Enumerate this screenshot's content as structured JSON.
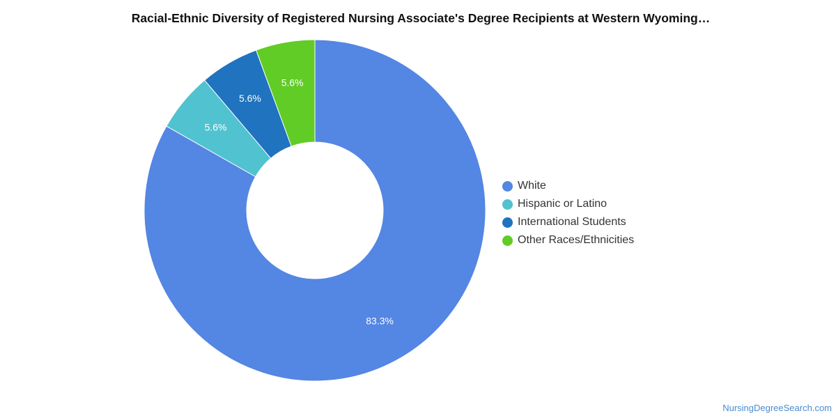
{
  "chart_data": {
    "type": "pie",
    "title": "Racial-Ethnic Diversity of Registered Nursing Associate's Degree Recipients at Western Wyoming…",
    "categories": [
      "White",
      "Hispanic or Latino",
      "International Students",
      "Other Races/Ethnicities"
    ],
    "values": [
      83.3,
      5.6,
      5.6,
      5.6
    ],
    "labels": [
      "83.3%",
      "5.6%",
      "5.6%",
      "5.6%"
    ],
    "colors": [
      "#5486e3",
      "#51c2cf",
      "#1f73bf",
      "#60cc25"
    ],
    "donut": true,
    "legend_position": "right"
  },
  "legend": {
    "items": [
      {
        "label": "White",
        "color": "#5486e3"
      },
      {
        "label": "Hispanic or Latino",
        "color": "#51c2cf"
      },
      {
        "label": "International Students",
        "color": "#1f73bf"
      },
      {
        "label": "Other Races/Ethnicities",
        "color": "#60cc25"
      }
    ]
  },
  "watermark": "NursingDegreeSearch.com"
}
